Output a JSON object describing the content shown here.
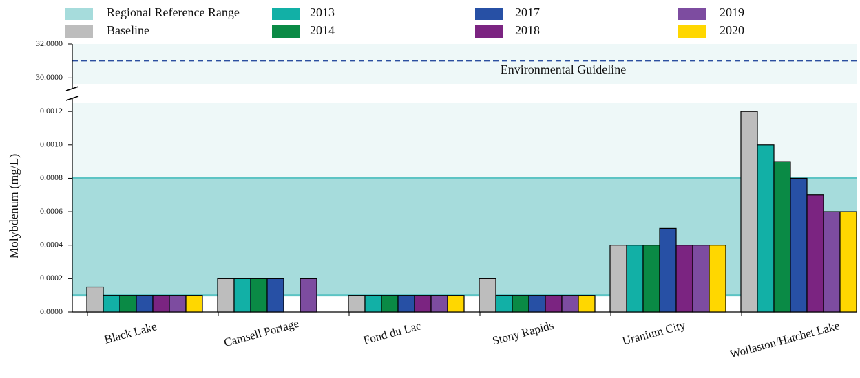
{
  "chart_data": {
    "type": "bar",
    "y_label": "Molybdenum (mg/L)",
    "categories": [
      "Black Lake",
      "Camsell Portage",
      "Fond du Lac",
      "Stony Rapids",
      "Uranium City",
      "Wollaston/Hatchet Lake"
    ],
    "series": [
      {
        "name": "Baseline",
        "color": "#bdbdbd",
        "values": [
          0.00015,
          0.0002,
          0.0001,
          0.0002,
          0.0004,
          0.0012
        ]
      },
      {
        "name": "2013",
        "color": "#12b0a6",
        "values": [
          0.0001,
          0.0002,
          0.0001,
          0.0001,
          0.0004,
          0.001
        ]
      },
      {
        "name": "2014",
        "color": "#0a8a45",
        "values": [
          0.0001,
          0.0002,
          0.0001,
          0.0001,
          0.0004,
          0.0009
        ]
      },
      {
        "name": "2017",
        "color": "#2750a5",
        "values": [
          0.0001,
          0.0002,
          0.0001,
          0.0001,
          0.0005,
          0.0008
        ]
      },
      {
        "name": "2018",
        "color": "#7b2481",
        "values": [
          0.0001,
          null,
          0.0001,
          0.0001,
          0.0004,
          0.0007
        ]
      },
      {
        "name": "2019",
        "color": "#7d4ca0",
        "values": [
          0.0001,
          0.0002,
          0.0001,
          0.0001,
          0.0004,
          0.0006
        ]
      },
      {
        "name": "2020",
        "color": "#ffd700",
        "values": [
          0.0001,
          null,
          0.0001,
          0.0001,
          0.0004,
          0.0006
        ]
      }
    ],
    "reference_range": {
      "name": "Regional Reference Range",
      "color": "#a6dcdc",
      "edge_color": "#5cc4c4",
      "low": 0.0001,
      "high": 0.0008
    },
    "guideline": {
      "label": "Environmental Guideline",
      "value": 31,
      "color": "#2b4fa0"
    },
    "ylim": [
      0,
      0.00125
    ],
    "yticks": [
      {
        "value": 0,
        "label": "0.0000"
      },
      0.0002,
      0.0004,
      0.0006,
      0.0008,
      {
        "value": 0.001,
        "label": "0.0010"
      },
      0.0012
    ],
    "ylim_upper": [
      29.65,
      32
    ],
    "yticks_upper": [
      {
        "value": 30,
        "label": "30.0000"
      },
      {
        "value": 32,
        "label": "32.0000"
      }
    ],
    "broken_axis": true
  }
}
